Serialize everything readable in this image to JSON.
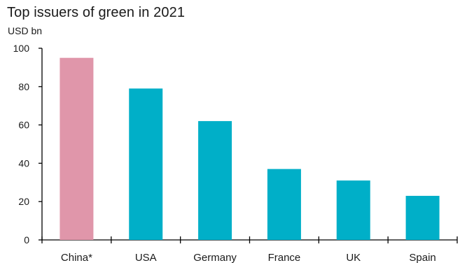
{
  "chart_data": {
    "type": "bar",
    "title": "Top issuers of green in 2021",
    "unit_label": "USD bn",
    "categories": [
      "China*",
      "USA",
      "Germany",
      "France",
      "UK",
      "Spain"
    ],
    "values": [
      95,
      79,
      62,
      37,
      31,
      23
    ],
    "ylim": [
      0,
      100
    ],
    "yticks": [
      0,
      20,
      40,
      60,
      80,
      100
    ],
    "grid": false,
    "legend": "none",
    "colors": {
      "highlight": "#e096aa",
      "default": "#00afc8",
      "axis": "#000000"
    },
    "highlight_index": 0
  }
}
